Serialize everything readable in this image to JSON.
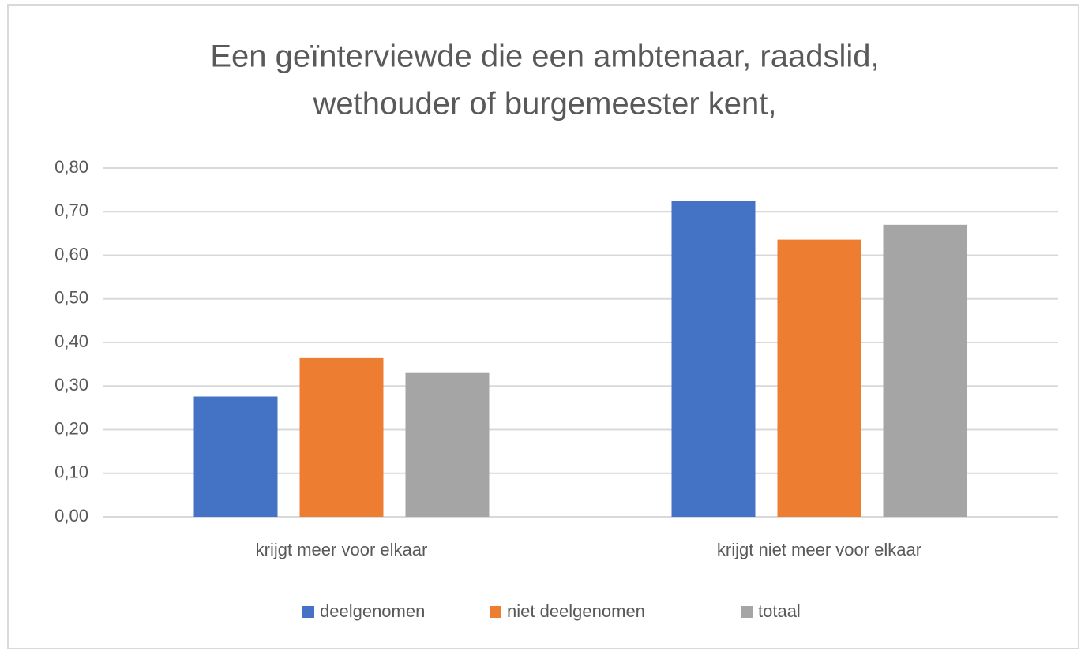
{
  "chart_data": {
    "type": "bar",
    "title": [
      "Een geïnterviewde die een ambtenaar, raadslid,",
      "wethouder of burgemeester kent,"
    ],
    "categories": [
      "krijgt meer voor elkaar",
      "krijgt niet meer voor elkaar"
    ],
    "series": [
      {
        "name": "deelgenomen",
        "color": "#4472c4",
        "values": [
          0.276,
          0.724
        ]
      },
      {
        "name": "niet deelgenomen",
        "color": "#ed7d31",
        "values": [
          0.364,
          0.636
        ]
      },
      {
        "name": "totaal",
        "color": "#a5a5a5",
        "values": [
          0.33,
          0.67
        ]
      }
    ],
    "ylim": [
      0,
      0.8
    ],
    "yticks": [
      {
        "value": 0,
        "label": "0,00"
      },
      {
        "value": 0.1,
        "label": "0,10"
      },
      {
        "value": 0.2,
        "label": "0,20"
      },
      {
        "value": 0.3,
        "label": "0,30"
      },
      {
        "value": 0.4,
        "label": "0,40"
      },
      {
        "value": 0.5,
        "label": "0,50"
      },
      {
        "value": 0.6,
        "label": "0,60"
      },
      {
        "value": 0.7,
        "label": "0,70"
      },
      {
        "value": 0.8,
        "label": "0,80"
      }
    ],
    "grid": true,
    "legend": "bottom"
  }
}
